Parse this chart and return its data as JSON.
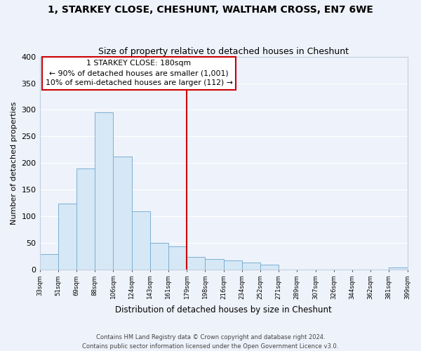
{
  "title": "1, STARKEY CLOSE, CHESHUNT, WALTHAM CROSS, EN7 6WE",
  "subtitle": "Size of property relative to detached houses in Cheshunt",
  "xlabel": "Distribution of detached houses by size in Cheshunt",
  "ylabel": "Number of detached properties",
  "bar_color": "#d6e8f5",
  "bar_edge_color": "#7bafd4",
  "background_color": "#eef2fa",
  "grid_color": "#ffffff",
  "tick_labels": [
    "33sqm",
    "51sqm",
    "69sqm",
    "88sqm",
    "106sqm",
    "124sqm",
    "143sqm",
    "161sqm",
    "179sqm",
    "198sqm",
    "216sqm",
    "234sqm",
    "252sqm",
    "271sqm",
    "289sqm",
    "307sqm",
    "326sqm",
    "344sqm",
    "362sqm",
    "381sqm",
    "399sqm"
  ],
  "bar_heights": [
    28,
    124,
    190,
    295,
    212,
    109,
    50,
    43,
    23,
    19,
    17,
    13,
    9,
    0,
    0,
    0,
    0,
    0,
    0,
    3
  ],
  "ylim": [
    0,
    400
  ],
  "yticks": [
    0,
    50,
    100,
    150,
    200,
    250,
    300,
    350,
    400
  ],
  "annotation_title": "1 STARKEY CLOSE: 180sqm",
  "annotation_line1": "← 90% of detached houses are smaller (1,001)",
  "annotation_line2": "10% of semi-detached houses are larger (112) →",
  "footer_line1": "Contains HM Land Registry data © Crown copyright and database right 2024.",
  "footer_line2": "Contains public sector information licensed under the Open Government Licence v3.0."
}
